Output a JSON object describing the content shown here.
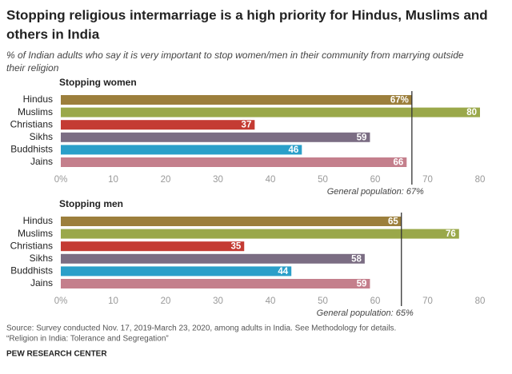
{
  "header": {
    "title_line1": "Stopping religious intermarriage is a high priority for Hindus, Muslims and",
    "title_line2": "others in India",
    "subtitle_line1": "% of Indian adults who say it is very important to stop women/men in their community from marrying outside",
    "subtitle_line2": "their religion"
  },
  "chart_data": [
    {
      "type": "bar",
      "orientation": "horizontal",
      "title": "Stopping women",
      "categories": [
        "Hindus",
        "Muslims",
        "Christians",
        "Sikhs",
        "Buddhists",
        "Jains"
      ],
      "values": [
        67,
        80,
        37,
        59,
        46,
        66
      ],
      "value_labels": [
        "67%",
        "80",
        "37",
        "59",
        "46",
        "66"
      ],
      "colors": [
        "#9c7f3c",
        "#9aa84a",
        "#c43b33",
        "#7b6d83",
        "#2a9fc9",
        "#c47f8c"
      ],
      "xlim": [
        0,
        80
      ],
      "xticks": [
        {
          "value": 0,
          "label": "0%"
        },
        10,
        20,
        30,
        40,
        50,
        60,
        70,
        80
      ],
      "reference": {
        "value": 67,
        "label": "General population: 67%"
      }
    },
    {
      "type": "bar",
      "orientation": "horizontal",
      "title": "Stopping men",
      "categories": [
        "Hindus",
        "Muslims",
        "Christians",
        "Sikhs",
        "Buddhists",
        "Jains"
      ],
      "values": [
        65,
        76,
        35,
        58,
        44,
        59
      ],
      "colors": [
        "#9c7f3c",
        "#9aa84a",
        "#c43b33",
        "#7b6d83",
        "#2a9fc9",
        "#c47f8c"
      ],
      "xlim": [
        0,
        80
      ],
      "xticks": [
        {
          "value": 0,
          "label": "0%"
        },
        10,
        20,
        30,
        40,
        50,
        60,
        70,
        80
      ],
      "reference": {
        "value": 65,
        "label": "General population: 65%"
      }
    }
  ],
  "footer": {
    "source_line1": "Source: Survey conducted Nov. 17, 2019-March 23, 2020, among adults in India. See Methodology for details.",
    "source_line2": "“Religion in India: Tolerance and Segregation”",
    "organization": "PEW RESEARCH CENTER"
  }
}
